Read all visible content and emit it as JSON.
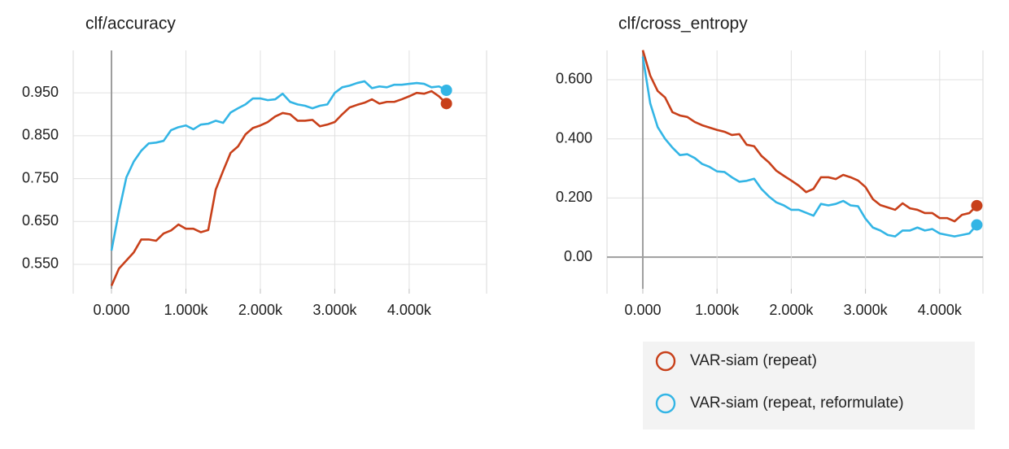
{
  "chart_data": [
    {
      "type": "line",
      "title": "clf/accuracy",
      "x": [
        0,
        100,
        200,
        300,
        400,
        500,
        600,
        700,
        800,
        900,
        1000,
        1100,
        1200,
        1300,
        1400,
        1500,
        1600,
        1700,
        1800,
        1900,
        2000,
        2100,
        2200,
        2300,
        2400,
        2500,
        2600,
        2700,
        2800,
        2900,
        3000,
        3100,
        3200,
        3300,
        3400,
        3500,
        3600,
        3700,
        3800,
        3900,
        4000,
        4100,
        4200,
        4300,
        4400,
        4500
      ],
      "series": [
        {
          "name": "VAR-siam (repeat)",
          "color": "#c8401a",
          "values": [
            0.5,
            0.54,
            0.559,
            0.578,
            0.608,
            0.608,
            0.605,
            0.622,
            0.629,
            0.643,
            0.633,
            0.633,
            0.625,
            0.63,
            0.724,
            0.768,
            0.81,
            0.825,
            0.853,
            0.868,
            0.874,
            0.882,
            0.895,
            0.903,
            0.9,
            0.885,
            0.885,
            0.887,
            0.872,
            0.876,
            0.882,
            0.9,
            0.916,
            0.922,
            0.927,
            0.935,
            0.925,
            0.929,
            0.929,
            0.935,
            0.942,
            0.95,
            0.948,
            0.954,
            0.942,
            0.925
          ]
        },
        {
          "name": "VAR-siam (repeat, reformulate)",
          "color": "#33b5e5",
          "values": [
            0.582,
            0.673,
            0.753,
            0.79,
            0.815,
            0.832,
            0.834,
            0.838,
            0.863,
            0.87,
            0.874,
            0.865,
            0.876,
            0.878,
            0.885,
            0.88,
            0.904,
            0.914,
            0.923,
            0.937,
            0.937,
            0.933,
            0.935,
            0.948,
            0.929,
            0.923,
            0.92,
            0.914,
            0.92,
            0.923,
            0.95,
            0.963,
            0.967,
            0.973,
            0.977,
            0.961,
            0.965,
            0.963,
            0.969,
            0.969,
            0.971,
            0.973,
            0.971,
            0.963,
            0.965,
            0.956
          ]
        }
      ],
      "xlim": [
        -514,
        5040
      ],
      "xticks": [
        {
          "value": 0,
          "label": "0.000"
        },
        {
          "value": 1000,
          "label": "1.000k"
        },
        {
          "value": 2000,
          "label": "2.000k"
        },
        {
          "value": 3000,
          "label": "3.000k"
        },
        {
          "value": 4000,
          "label": "4.000k"
        }
      ],
      "ylim": [
        0.493,
        1.049
      ],
      "yticks": [
        {
          "value": 0.55,
          "label": "0.550"
        },
        {
          "value": 0.65,
          "label": "0.650"
        },
        {
          "value": 0.75,
          "label": "0.750"
        },
        {
          "value": 0.85,
          "label": "0.850"
        },
        {
          "value": 0.95,
          "label": "0.950"
        }
      ],
      "grid": true
    },
    {
      "type": "line",
      "title": "clf/cross_entropy",
      "x": [
        0,
        100,
        200,
        300,
        400,
        500,
        600,
        700,
        800,
        900,
        1000,
        1100,
        1200,
        1300,
        1400,
        1500,
        1600,
        1700,
        1800,
        1900,
        2000,
        2100,
        2200,
        2300,
        2400,
        2500,
        2600,
        2700,
        2800,
        2900,
        3000,
        3100,
        3200,
        3300,
        3400,
        3500,
        3600,
        3700,
        3800,
        3900,
        4000,
        4100,
        4200,
        4300,
        4400,
        4500
      ],
      "series": [
        {
          "name": "VAR-siam (repeat)",
          "color": "#c8401a",
          "values": [
            0.7,
            0.614,
            0.562,
            0.54,
            0.49,
            0.479,
            0.474,
            0.457,
            0.446,
            0.438,
            0.43,
            0.424,
            0.413,
            0.416,
            0.38,
            0.375,
            0.342,
            0.32,
            0.292,
            0.275,
            0.259,
            0.242,
            0.22,
            0.231,
            0.27,
            0.27,
            0.264,
            0.278,
            0.27,
            0.259,
            0.237,
            0.196,
            0.176,
            0.168,
            0.16,
            0.182,
            0.165,
            0.16,
            0.149,
            0.149,
            0.132,
            0.132,
            0.121,
            0.143,
            0.149,
            0.174
          ]
        },
        {
          "name": "VAR-siam (repeat, reformulate)",
          "color": "#33b5e5",
          "values": [
            0.678,
            0.52,
            0.44,
            0.4,
            0.37,
            0.345,
            0.348,
            0.335,
            0.315,
            0.305,
            0.29,
            0.288,
            0.27,
            0.255,
            0.258,
            0.265,
            0.23,
            0.205,
            0.185,
            0.175,
            0.16,
            0.16,
            0.15,
            0.14,
            0.18,
            0.175,
            0.18,
            0.19,
            0.175,
            0.172,
            0.13,
            0.1,
            0.09,
            0.075,
            0.07,
            0.09,
            0.09,
            0.1,
            0.09,
            0.095,
            0.08,
            0.075,
            0.07,
            0.075,
            0.08,
            0.109
          ]
        }
      ],
      "xlim": [
        -482,
        4583
      ],
      "xticks": [
        {
          "value": 0,
          "label": "0.000"
        },
        {
          "value": 1000,
          "label": "1.000k"
        },
        {
          "value": 2000,
          "label": "2.000k"
        },
        {
          "value": 3000,
          "label": "3.000k"
        },
        {
          "value": 4000,
          "label": "4.000k"
        }
      ],
      "ylim": [
        -0.107,
        0.699
      ],
      "yticks": [
        {
          "value": 0,
          "label": "0.00"
        },
        {
          "value": 0.2,
          "label": "0.200"
        },
        {
          "value": 0.4,
          "label": "0.400"
        },
        {
          "value": 0.6,
          "label": "0.600"
        }
      ],
      "grid": true,
      "legend": "bottom"
    }
  ]
}
